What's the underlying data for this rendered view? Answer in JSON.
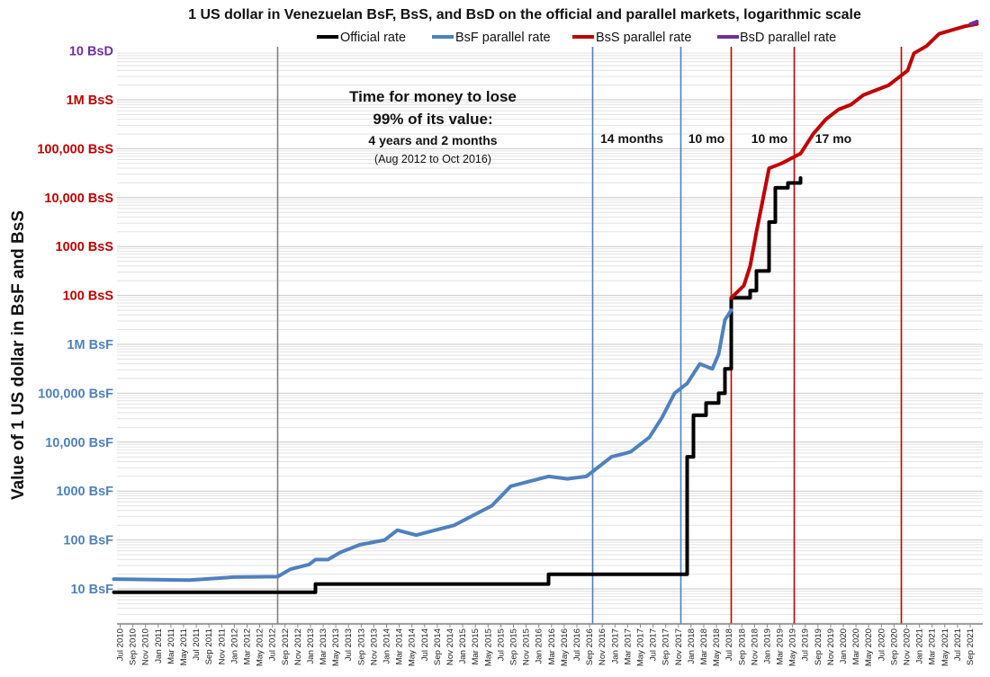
{
  "chart_data": {
    "type": "line",
    "title": "1 US dollar in Venezuelan BsF, BsS, and BsD on the official and parallel markets, logarithmic scale",
    "ylabel": "Value of 1 US dollar in BsF and BsS",
    "xlabel": "",
    "log_scale": true,
    "grid": true,
    "legend_position": "top",
    "x_range": [
      "2010-06",
      "2021-11"
    ],
    "y_range_log10": [
      0.7,
      11.05
    ],
    "y_ticks": [
      {
        "log10": 1,
        "label": "10 BsF",
        "color": "#4f81bd"
      },
      {
        "log10": 2,
        "label": "100 BsF",
        "color": "#4f81bd"
      },
      {
        "log10": 3,
        "label": "1000 BsF",
        "color": "#4f81bd"
      },
      {
        "log10": 4,
        "label": "10,000 BsF",
        "color": "#4f81bd"
      },
      {
        "log10": 5,
        "label": "100,000 BsF",
        "color": "#4f81bd"
      },
      {
        "log10": 6,
        "label": "1M BsF",
        "color": "#4f81bd"
      },
      {
        "log10": 7,
        "label": "100 BsS",
        "color": "#c00000"
      },
      {
        "log10": 8,
        "label": "1000 BsS",
        "color": "#c00000"
      },
      {
        "log10": 9,
        "label": "10,000 BsS",
        "color": "#c00000"
      },
      {
        "log10": 10,
        "label": "100,000 BsS",
        "color": "#c00000"
      },
      {
        "log10": 11,
        "label": "1M BsS",
        "color": "#c00000"
      },
      {
        "log10": 12,
        "label": "10 BsD",
        "color": "#7030a0"
      }
    ],
    "x_ticks": [
      "Jul 2010",
      "Sep 2010",
      "Nov 2010",
      "Jan 2011",
      "Mar 2011",
      "May 2011",
      "Jul 2011",
      "Sep 2011",
      "Nov 2011",
      "Jan 2012",
      "Mar 2012",
      "May 2012",
      "Jul 2012",
      "Sep 2012",
      "Nov 2012",
      "Jan 2013",
      "Mar 2013",
      "May 2013",
      "Jul 2013",
      "Sep 2013",
      "Nov 2013",
      "Jan 2014",
      "Mar 2014",
      "May 2014",
      "Jul 2014",
      "Sep 2014",
      "Nov 2014",
      "Jan 2015",
      "Mar 2015",
      "May 2015",
      "Jul 2015",
      "Sep 2015",
      "Nov 2015",
      "Jan 2016",
      "Mar 2016",
      "May 2016",
      "Jul 2016",
      "Sep 2016",
      "Nov 2016",
      "Jan 2017",
      "Mar 2017",
      "May 2017",
      "Jul 2017",
      "Sep 2017",
      "Nov 2017",
      "Jan 2018",
      "Mar 2018",
      "May 2018",
      "Jul 2018",
      "Sep 2018",
      "Nov 2018",
      "Jan 2019",
      "Mar 2019",
      "May 2019",
      "Jul 2019",
      "Sep 2019",
      "Nov 2019",
      "Jan 2020",
      "Mar 2020",
      "May 2020",
      "Jul 2020",
      "Sep 2020",
      "Nov 2020",
      "Jan 2021",
      "Mar 2021",
      "May 2021",
      "Jul 2021",
      "Sep 2021"
    ],
    "series": [
      {
        "name": "Official rate",
        "color": "#000000",
        "step": true,
        "points": [
          [
            "2010-06",
            0.93
          ],
          [
            "2013-02",
            0.93
          ],
          [
            "2013-02",
            1.1
          ],
          [
            "2016-03",
            1.1
          ],
          [
            "2016-03",
            1.3
          ],
          [
            "2018-01",
            1.3
          ],
          [
            "2018-01",
            3.7
          ],
          [
            "2018-02",
            4.55
          ],
          [
            "2018-04",
            4.8
          ],
          [
            "2018-06",
            5.0
          ],
          [
            "2018-07",
            5.5
          ],
          [
            "2018-08",
            6.95
          ],
          [
            "2018-09",
            6.95
          ],
          [
            "2018-11",
            7.1
          ],
          [
            "2018-12",
            7.5
          ],
          [
            "2019-02",
            8.5
          ],
          [
            "2019-03",
            9.2
          ],
          [
            "2019-05",
            9.3
          ],
          [
            "2019-07",
            9.4
          ]
        ]
      },
      {
        "name": "BsF parallel rate",
        "color": "#4f81bd",
        "step": false,
        "points": [
          [
            "2010-06",
            1.2
          ],
          [
            "2011-06",
            1.18
          ],
          [
            "2012-01",
            1.24
          ],
          [
            "2012-08",
            1.25
          ],
          [
            "2012-10",
            1.4
          ],
          [
            "2013-01",
            1.5
          ],
          [
            "2013-02",
            1.6
          ],
          [
            "2013-04",
            1.6
          ],
          [
            "2013-06",
            1.75
          ],
          [
            "2013-09",
            1.9
          ],
          [
            "2014-01",
            2.0
          ],
          [
            "2014-03",
            2.2
          ],
          [
            "2014-06",
            2.1
          ],
          [
            "2014-09",
            2.2
          ],
          [
            "2014-12",
            2.3
          ],
          [
            "2015-03",
            2.5
          ],
          [
            "2015-06",
            2.7
          ],
          [
            "2015-09",
            3.1
          ],
          [
            "2015-12",
            3.2
          ],
          [
            "2016-03",
            3.3
          ],
          [
            "2016-06",
            3.25
          ],
          [
            "2016-09",
            3.3
          ],
          [
            "2016-11",
            3.5
          ],
          [
            "2017-01",
            3.7
          ],
          [
            "2017-04",
            3.8
          ],
          [
            "2017-07",
            4.1
          ],
          [
            "2017-09",
            4.5
          ],
          [
            "2017-11",
            5.0
          ],
          [
            "2018-01",
            5.2
          ],
          [
            "2018-03",
            5.6
          ],
          [
            "2018-05",
            5.5
          ],
          [
            "2018-06",
            5.8
          ],
          [
            "2018-07",
            6.5
          ],
          [
            "2018-08",
            6.7
          ]
        ]
      },
      {
        "name": "BsS parallel rate",
        "color": "#c00000",
        "step": false,
        "points": [
          [
            "2018-08",
            6.95
          ],
          [
            "2018-10",
            7.2
          ],
          [
            "2018-11",
            7.6
          ],
          [
            "2018-12",
            8.3
          ],
          [
            "2019-02",
            9.6
          ],
          [
            "2019-04",
            9.7
          ],
          [
            "2019-07",
            9.9
          ],
          [
            "2019-09",
            10.3
          ],
          [
            "2019-11",
            10.6
          ],
          [
            "2020-01",
            10.8
          ],
          [
            "2020-03",
            10.9
          ],
          [
            "2020-05",
            11.1
          ],
          [
            "2020-09",
            11.3
          ],
          [
            "2020-12",
            11.6
          ],
          [
            "2021-01",
            11.95
          ],
          [
            "2021-03",
            12.1
          ],
          [
            "2021-05",
            12.35
          ],
          [
            "2021-09",
            12.5
          ],
          [
            "2021-11",
            12.55
          ]
        ]
      },
      {
        "name": "BsD parallel rate",
        "color": "#7030a0",
        "step": false,
        "points": [
          [
            "2021-10",
            12.55
          ],
          [
            "2021-11",
            12.6
          ]
        ]
      }
    ],
    "vlines": [
      {
        "date": "2012-08",
        "color": "#808080"
      },
      {
        "date": "2016-10",
        "color": "#4f81bd"
      },
      {
        "date": "2017-12",
        "color": "#4f81bd"
      },
      {
        "date": "2018-08",
        "color": "#c00000"
      },
      {
        "date": "2019-06",
        "color": "#c00000"
      },
      {
        "date": "2020-11",
        "color": "#c00000"
      }
    ],
    "annotations": {
      "line1": "Time for money to lose",
      "line2": "99% of its value:",
      "line3": "4 years and 2 months",
      "line4": "(Aug 2012 to Oct 2016)",
      "period1": "14 months",
      "period2": "10 mo",
      "period3": "10 mo",
      "period4": "17 mo"
    }
  }
}
